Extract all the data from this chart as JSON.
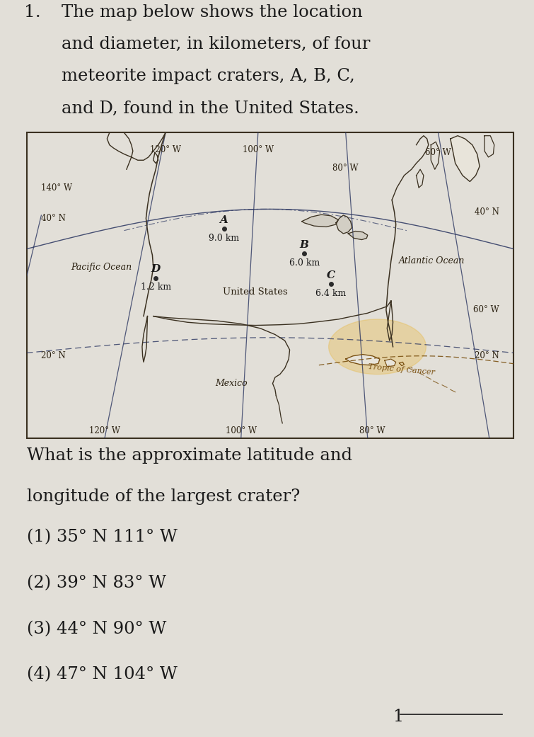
{
  "bg_color": "#e2dfd8",
  "question_number": "1.",
  "q_lines": [
    "The map below shows the location",
    "and diameter, in kilometers, of four",
    "meteorite impact craters, A, B, C,",
    "and D, found in the United States."
  ],
  "q2_lines": [
    "What is the approximate latitude and",
    "longitude of the largest crater?"
  ],
  "choices": [
    "(1) 35° N 111° W",
    "(2) 39° N 83° W",
    "(3) 44° N 90° W",
    "(4) 47° N 104° W"
  ],
  "answer_num": "1",
  "map_bg": "#e8e4da",
  "border_color": "#3a3020",
  "line_color": "#2a3560",
  "label_color": "#2a2010",
  "tropic_color": "#7a5010",
  "land_color": "#e8e4da",
  "craters": [
    {
      "label": "A",
      "xf": 0.405,
      "yf": 0.315,
      "size_km": 9.0
    },
    {
      "label": "B",
      "xf": 0.57,
      "yf": 0.395,
      "size_km": 6.0
    },
    {
      "label": "C",
      "xf": 0.625,
      "yf": 0.495,
      "size_km": 6.4
    },
    {
      "label": "D",
      "xf": 0.265,
      "yf": 0.475,
      "size_km": 1.2
    }
  ]
}
